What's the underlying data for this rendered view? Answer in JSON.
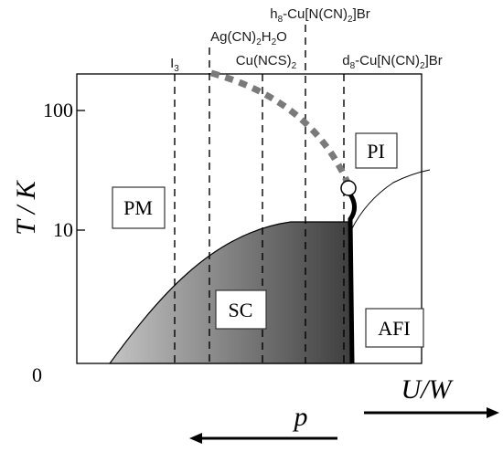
{
  "materials": [
    {
      "name": "I",
      "sub": "3",
      "rest": ""
    },
    {
      "name": "Ag(CN)",
      "sub": "2",
      "rest": "H",
      "sub2": "2",
      "rest2": "O"
    },
    {
      "name": "Cu(NCS)",
      "sub": "2",
      "rest": ""
    },
    {
      "name": "h",
      "sub": "8",
      "rest": "-Cu[N(CN)",
      "sub2": "2",
      "rest2": "]Br"
    },
    {
      "name": "d",
      "sub": "8",
      "rest": "-Cu[N(CN)",
      "sub2": "2",
      "rest2": "]Br"
    }
  ],
  "regions": {
    "pm": "PM",
    "pi": "PI",
    "sc": "SC",
    "afi": "AFI"
  },
  "axes": {
    "y_title": "T / K",
    "y_ticks": [
      "100",
      "10",
      "0"
    ],
    "x_title_uw": "U/W",
    "x_title_p": "p"
  },
  "colors": {
    "sc_dark": "#3e3e3e",
    "sc_light": "#c4c4c4",
    "crossover_dash": "#7a7a7a"
  }
}
